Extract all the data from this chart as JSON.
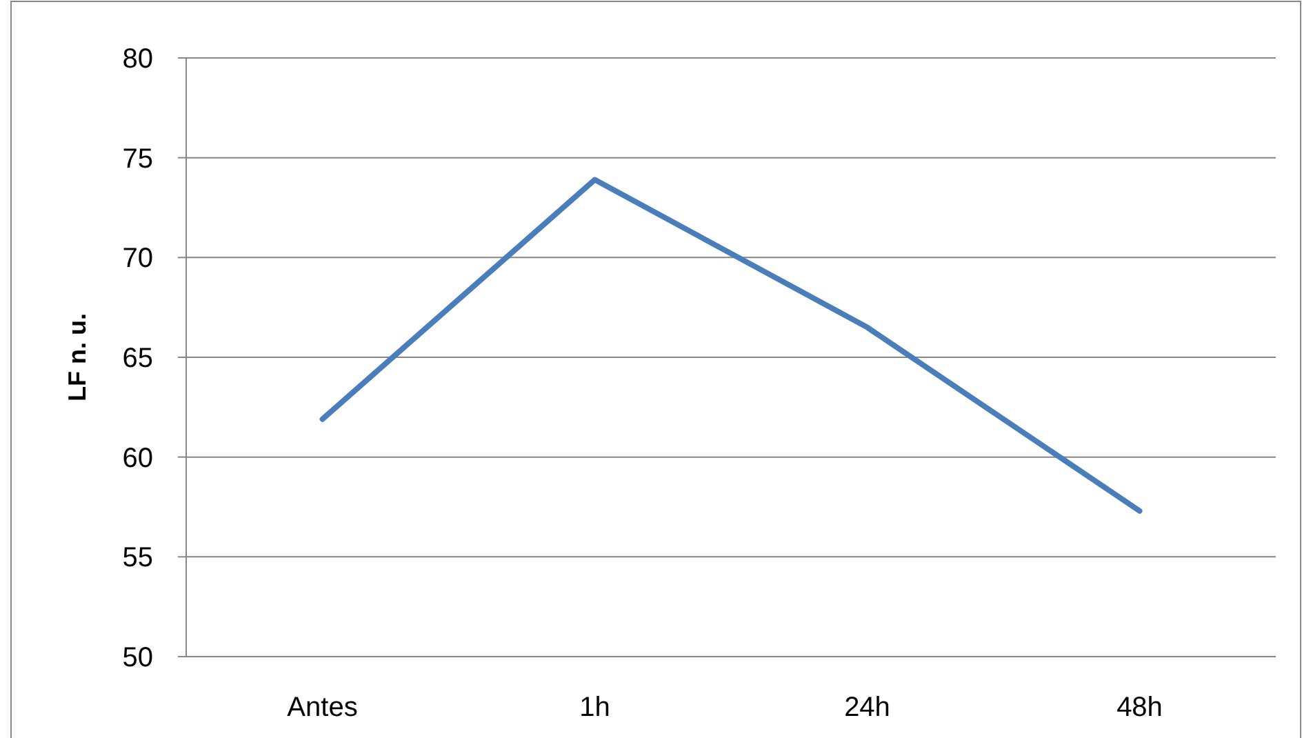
{
  "chart_data": {
    "type": "line",
    "ylabel": "LF n. u.",
    "categories": [
      "Antes",
      "1h",
      "24h",
      "48h"
    ],
    "series": [
      {
        "color": "#4a7ebb",
        "values": [
          61.9,
          73.9,
          66.5,
          57.3
        ]
      }
    ],
    "ylim": [
      50,
      80
    ],
    "yticks": [
      50,
      55,
      60,
      65,
      70,
      75,
      80
    ],
    "grid": "y",
    "marker": "none",
    "line_style": "solid"
  }
}
